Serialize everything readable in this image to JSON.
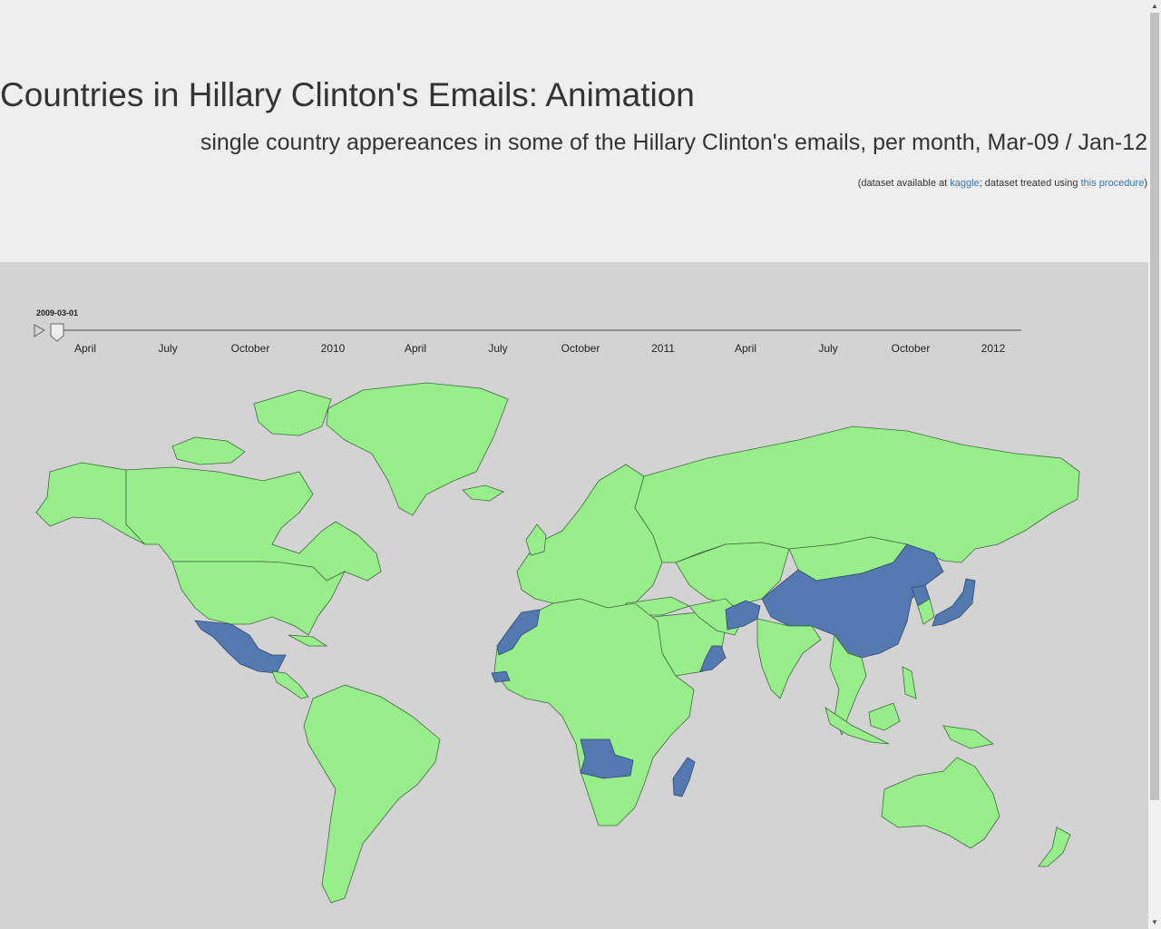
{
  "header": {
    "title": "Countries in Hillary Clinton's Emails: Animation",
    "subtitle": "single country appereances in some of the Hillary Clinton's emails, per month, Mar-09 / Jan-12",
    "credits_prefix": "(dataset available at ",
    "kaggle_link": "kaggle",
    "credits_middle": "; dataset treated using ",
    "procedure_link": "this procedure",
    "credits_suffix": ")"
  },
  "timeline": {
    "current_date": "2009-03-01",
    "ticks": [
      "April",
      "July",
      "October",
      "2010",
      "April",
      "July",
      "October",
      "2011",
      "April",
      "July",
      "October",
      "2012"
    ],
    "play_icon": "play-icon"
  },
  "colors": {
    "no_mention": "#98ee8a",
    "mentioned": "#5479b0",
    "ocean": "#d3d3d3"
  },
  "map": {
    "highlighted_countries": [
      "Mexico",
      "Morocco",
      "Senegal",
      "Angola",
      "Madagascar",
      "Oman",
      "Afghanistan",
      "China",
      "North Korea",
      "Japan"
    ]
  }
}
